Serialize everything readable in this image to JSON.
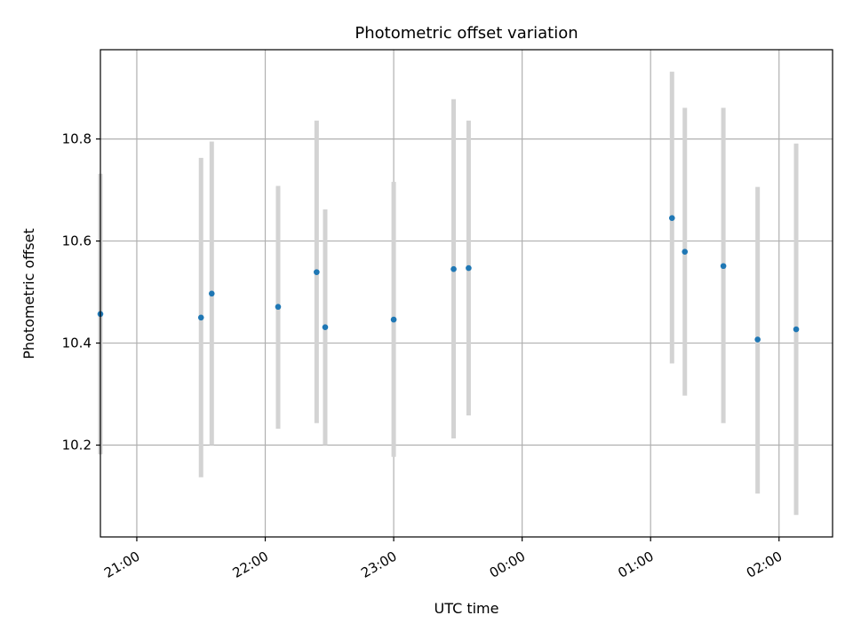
{
  "chart_data": {
    "type": "scatter",
    "title": "Photometric offset variation",
    "xlabel": "UTC time",
    "ylabel": "Photometric offset",
    "x_axis_kind": "time",
    "xlim": [
      "20:43",
      "02:25"
    ],
    "ylim": [
      10.02,
      10.975
    ],
    "x_ticks": [
      "21:00",
      "22:00",
      "23:00",
      "00:00",
      "01:00",
      "02:00"
    ],
    "y_ticks": [
      "10.2",
      "10.4",
      "10.6",
      "10.8"
    ],
    "y_tick_values": [
      10.2,
      10.4,
      10.6,
      10.8
    ],
    "grid": true,
    "legend": false,
    "colors": {
      "marker": "#1f77b4",
      "errorbar": "#d3d3d3",
      "grid": "#b0b0b0"
    },
    "series": [
      {
        "points": [
          {
            "x": "20:43",
            "y": 10.457,
            "ylow": 10.182,
            "yhigh": 10.732
          },
          {
            "x": "21:30",
            "y": 10.45,
            "ylow": 10.137,
            "yhigh": 10.763
          },
          {
            "x": "21:35",
            "y": 10.497,
            "ylow": 10.2,
            "yhigh": 10.795
          },
          {
            "x": "22:06",
            "y": 10.471,
            "ylow": 10.232,
            "yhigh": 10.708
          },
          {
            "x": "22:24",
            "y": 10.539,
            "ylow": 10.243,
            "yhigh": 10.836
          },
          {
            "x": "22:28",
            "y": 10.431,
            "ylow": 10.2,
            "yhigh": 10.662
          },
          {
            "x": "23:00",
            "y": 10.446,
            "ylow": 10.177,
            "yhigh": 10.716
          },
          {
            "x": "23:28",
            "y": 10.545,
            "ylow": 10.213,
            "yhigh": 10.878
          },
          {
            "x": "23:35",
            "y": 10.547,
            "ylow": 10.258,
            "yhigh": 10.836
          },
          {
            "x": "01:10",
            "y": 10.645,
            "ylow": 10.36,
            "yhigh": 10.932
          },
          {
            "x": "01:16",
            "y": 10.579,
            "ylow": 10.297,
            "yhigh": 10.861
          },
          {
            "x": "01:34",
            "y": 10.551,
            "ylow": 10.243,
            "yhigh": 10.861
          },
          {
            "x": "01:50",
            "y": 10.407,
            "ylow": 10.105,
            "yhigh": 10.706
          },
          {
            "x": "02:08",
            "y": 10.427,
            "ylow": 10.063,
            "yhigh": 10.791
          }
        ]
      }
    ]
  }
}
